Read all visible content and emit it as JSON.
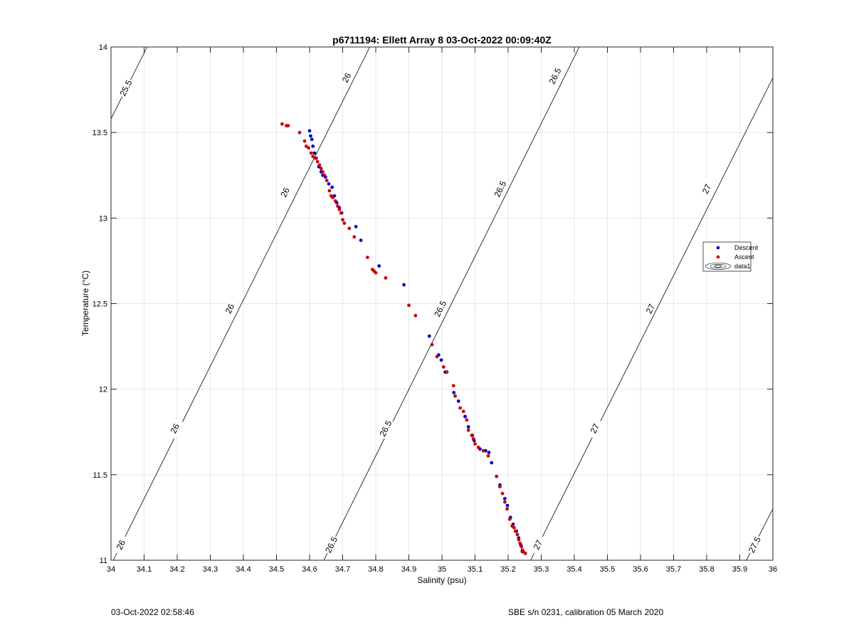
{
  "chart_data": {
    "type": "scatter",
    "title": "p6711194: Ellett Array 8 03-Oct-2022 00:09:40Z",
    "xlabel": "Salinity (psu)",
    "ylabel": "Temperature (°C)",
    "xlim": [
      34,
      36
    ],
    "ylim": [
      11,
      14
    ],
    "x_ticks": [
      34,
      34.1,
      34.2,
      34.3,
      34.4,
      34.5,
      34.6,
      34.7,
      34.8,
      34.9,
      35,
      35.1,
      35.2,
      35.3,
      35.4,
      35.5,
      35.6,
      35.7,
      35.8,
      35.9,
      36
    ],
    "x_tick_labels": [
      "34",
      "34.1",
      "34.2",
      "34.3",
      "34.4",
      "34.5",
      "34.6",
      "34.7",
      "34.8",
      "34.9",
      "35",
      "35.1",
      "35.2",
      "35.3",
      "35.4",
      "35.5",
      "35.6",
      "35.7",
      "35.8",
      "35.9",
      "36"
    ],
    "y_ticks": [
      11,
      11.5,
      12,
      12.5,
      13,
      13.5,
      14
    ],
    "y_tick_labels": [
      "11",
      "11.5",
      "12",
      "12.5",
      "13",
      "13.5",
      "14"
    ],
    "grid": true,
    "legend": {
      "placement": "right",
      "entries": [
        "Descent",
        "Ascent",
        "data1"
      ]
    },
    "series": [
      {
        "name": "Descent",
        "color": "#0000cc",
        "points": [
          [
            34.6,
            13.51
          ],
          [
            34.603,
            13.48
          ],
          [
            34.607,
            13.46
          ],
          [
            34.61,
            13.42
          ],
          [
            34.615,
            13.38
          ],
          [
            34.62,
            13.35
          ],
          [
            34.628,
            13.3
          ],
          [
            34.635,
            13.27
          ],
          [
            34.64,
            13.25
          ],
          [
            34.648,
            13.24
          ],
          [
            34.658,
            13.2
          ],
          [
            34.668,
            13.18
          ],
          [
            34.675,
            13.13
          ],
          [
            34.682,
            13.09
          ],
          [
            34.69,
            13.06
          ],
          [
            34.697,
            13.03
          ],
          [
            34.74,
            12.95
          ],
          [
            34.755,
            12.87
          ],
          [
            34.81,
            12.72
          ],
          [
            34.885,
            12.61
          ],
          [
            34.962,
            12.31
          ],
          [
            34.99,
            12.2
          ],
          [
            34.998,
            12.17
          ],
          [
            35.01,
            12.1
          ],
          [
            35.036,
            11.98
          ],
          [
            35.05,
            11.93
          ],
          [
            35.07,
            11.84
          ],
          [
            35.08,
            11.78
          ],
          [
            35.092,
            11.73
          ],
          [
            35.097,
            11.7
          ],
          [
            35.115,
            11.65
          ],
          [
            35.132,
            11.64
          ],
          [
            35.142,
            11.63
          ],
          [
            35.15,
            11.57
          ],
          [
            35.165,
            11.49
          ],
          [
            35.175,
            11.44
          ],
          [
            35.19,
            11.36
          ],
          [
            35.198,
            11.32
          ],
          [
            35.207,
            11.25
          ],
          [
            35.215,
            11.21
          ],
          [
            35.225,
            11.17
          ],
          [
            35.232,
            11.13
          ],
          [
            35.238,
            11.09
          ],
          [
            35.243,
            11.05
          ]
        ]
      },
      {
        "name": "Ascent",
        "color": "#cc0000",
        "points": [
          [
            34.517,
            13.55
          ],
          [
            34.53,
            13.54
          ],
          [
            34.535,
            13.54
          ],
          [
            34.57,
            13.5
          ],
          [
            34.585,
            13.45
          ],
          [
            34.59,
            13.42
          ],
          [
            34.597,
            13.41
          ],
          [
            34.605,
            13.38
          ],
          [
            34.61,
            13.36
          ],
          [
            34.617,
            13.35
          ],
          [
            34.624,
            13.33
          ],
          [
            34.63,
            13.31
          ],
          [
            34.635,
            13.29
          ],
          [
            34.64,
            13.27
          ],
          [
            34.645,
            13.25
          ],
          [
            34.652,
            13.22
          ],
          [
            34.66,
            13.16
          ],
          [
            34.665,
            13.13
          ],
          [
            34.67,
            13.12
          ],
          [
            34.678,
            13.1
          ],
          [
            34.685,
            13.07
          ],
          [
            34.69,
            13.05
          ],
          [
            34.695,
            13.03
          ],
          [
            34.7,
            12.99
          ],
          [
            34.705,
            12.97
          ],
          [
            34.72,
            12.94
          ],
          [
            34.735,
            12.89
          ],
          [
            34.775,
            12.77
          ],
          [
            34.79,
            12.7
          ],
          [
            34.795,
            12.69
          ],
          [
            34.8,
            12.68
          ],
          [
            34.83,
            12.65
          ],
          [
            34.9,
            12.49
          ],
          [
            34.92,
            12.43
          ],
          [
            34.97,
            12.26
          ],
          [
            34.985,
            12.19
          ],
          [
            35.005,
            12.13
          ],
          [
            35.015,
            12.1
          ],
          [
            35.035,
            12.02
          ],
          [
            35.04,
            11.96
          ],
          [
            35.055,
            11.89
          ],
          [
            35.065,
            11.87
          ],
          [
            35.075,
            11.82
          ],
          [
            35.08,
            11.76
          ],
          [
            35.09,
            11.73
          ],
          [
            35.095,
            11.71
          ],
          [
            35.1,
            11.68
          ],
          [
            35.11,
            11.66
          ],
          [
            35.125,
            11.64
          ],
          [
            35.14,
            11.61
          ],
          [
            35.165,
            11.49
          ],
          [
            35.175,
            11.43
          ],
          [
            35.183,
            11.39
          ],
          [
            35.19,
            11.34
          ],
          [
            35.197,
            11.3
          ],
          [
            35.205,
            11.24
          ],
          [
            35.212,
            11.2
          ],
          [
            35.218,
            11.19
          ],
          [
            35.222,
            11.17
          ],
          [
            35.228,
            11.15
          ],
          [
            35.232,
            11.12
          ],
          [
            35.236,
            11.1
          ],
          [
            35.24,
            11.08
          ],
          [
            35.243,
            11.06
          ],
          [
            35.246,
            11.05
          ],
          [
            35.252,
            11.04
          ]
        ]
      }
    ],
    "contours": [
      {
        "label": "25.5",
        "points": [
          [
            34.0,
            13.58
          ],
          [
            34.109,
            14.0
          ]
        ],
        "labels_at": [
          [
            34.045,
            13.76
          ]
        ]
      },
      {
        "label": "26",
        "points": [
          [
            34.007,
            11.0
          ],
          [
            34.782,
            14.0
          ]
        ],
        "labels_at": [
          [
            34.03,
            11.09
          ],
          [
            34.193,
            11.77
          ],
          [
            34.359,
            12.47
          ],
          [
            34.526,
            13.15
          ],
          [
            34.712,
            13.82
          ]
        ]
      },
      {
        "label": "26.5",
        "points": [
          [
            34.643,
            11.0
          ],
          [
            35.415,
            14.0
          ]
        ],
        "labels_at": [
          [
            34.666,
            11.09
          ],
          [
            34.83,
            11.77
          ],
          [
            34.995,
            12.47
          ],
          [
            35.176,
            13.17
          ],
          [
            35.342,
            13.83
          ]
        ]
      },
      {
        "label": "27",
        "points": [
          [
            35.268,
            11.0
          ],
          [
            36.0,
            13.82
          ]
        ],
        "labels_at": [
          [
            35.29,
            11.09
          ],
          [
            35.462,
            11.77
          ],
          [
            35.63,
            12.47
          ],
          [
            35.8,
            13.17
          ]
        ]
      },
      {
        "label": "27.5",
        "points": [
          [
            35.92,
            11.0
          ],
          [
            36.0,
            11.3
          ]
        ],
        "labels_at": [
          [
            35.945,
            11.09
          ]
        ]
      }
    ]
  },
  "footer": {
    "timestamp": "03-Oct-2022 02:58:46",
    "calibration": "SBE s/n 0231, calibration 05 March 2020"
  }
}
